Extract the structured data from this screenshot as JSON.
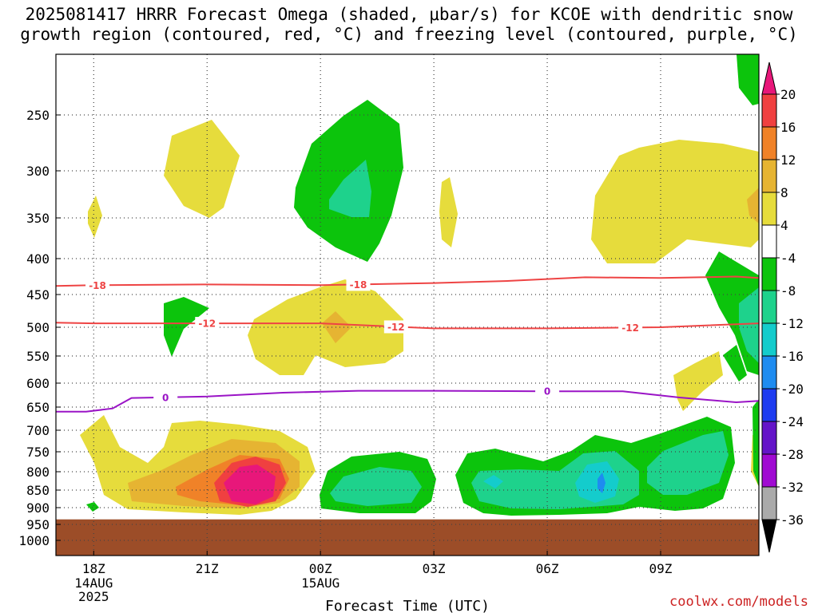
{
  "title": "2025081417 HRRR Forecast Omega (shaded, μbar/s) for KCOE with dendritic snow\ngrowth region (contoured, red, °C) and freezing level (contoured, purple, °C)",
  "credit": "coolwx.com/models",
  "chart_data": {
    "type": "time-height cross section",
    "xlabel": "Forecast Time (UTC)",
    "ylabel": "",
    "x_ticks": [
      {
        "hour": 0,
        "label": "18Z",
        "sub": [
          "14AUG",
          "2025"
        ]
      },
      {
        "hour": 3,
        "label": "21Z",
        "sub": []
      },
      {
        "hour": 6,
        "label": "00Z",
        "sub": [
          "15AUG"
        ]
      },
      {
        "hour": 9,
        "label": "03Z",
        "sub": []
      },
      {
        "hour": 12,
        "label": "06Z",
        "sub": []
      },
      {
        "hour": 15,
        "label": "09Z",
        "sub": []
      }
    ],
    "xlim_hours": [
      -1,
      17.6
    ],
    "y_axis": "pressure (hPa), inverted",
    "ylim": [
      1050,
      200
    ],
    "y_ticks": [
      250,
      300,
      350,
      400,
      450,
      500,
      550,
      600,
      650,
      700,
      750,
      800,
      850,
      900,
      950,
      1000
    ],
    "grid": "dotted",
    "ground": {
      "top_hPa": 935,
      "color": "#9c4d28"
    },
    "colorbar": {
      "levels": [
        20,
        16,
        12,
        8,
        4,
        -4,
        -8,
        -12,
        -16,
        -20,
        -24,
        -28,
        -32,
        -36
      ],
      "colors": [
        "#e8177a",
        "#f04040",
        "#f08228",
        "#e6b432",
        "#e6dc3c",
        "#ffffff",
        "#0cc40c",
        "#1ed28c",
        "#14cccc",
        "#1e8cf0",
        "#1e3cf0",
        "#6414c8",
        "#a00ad2",
        "#aaaaaa"
      ],
      "over_color": "#e8177a",
      "under_color": "#000000"
    },
    "omega_regions": [
      {
        "label": "20",
        "value": 20,
        "hour": 4.0,
        "p": 830
      },
      {
        "label": "16",
        "value": 16,
        "hour": 4.0,
        "p": 830
      },
      {
        "label": "12",
        "value": 12,
        "hour": 3.5,
        "p": 830
      },
      {
        "label": "8",
        "value": 8,
        "hour": 3.2,
        "p": 830
      },
      {
        "label": "4",
        "value": 4,
        "hour": 3.0,
        "p": 800
      },
      {
        "label": "-8",
        "value": -8,
        "hour": 6.5,
        "p": 320
      },
      {
        "label": "-12",
        "value": -12,
        "hour": 6.5,
        "p": 320
      },
      {
        "label": "-8",
        "value": -8,
        "hour": 7.5,
        "p": 830
      },
      {
        "label": "-12",
        "value": -12,
        "hour": 7.5,
        "p": 830
      },
      {
        "label": "-8",
        "value": -8,
        "hour": 12.5,
        "p": 830
      },
      {
        "label": "-12",
        "value": -12,
        "hour": 12.5,
        "p": 830
      },
      {
        "label": "-16",
        "value": -16,
        "hour": 13.0,
        "p": 830
      },
      {
        "label": "-20",
        "value": -20,
        "hour": 13.0,
        "p": 830
      }
    ],
    "contours": [
      {
        "name": "-18",
        "color": "#ee4444",
        "hours": [
          -1,
          0,
          3,
          6,
          9,
          11,
          13,
          15,
          17,
          17.6
        ],
        "p": [
          438,
          437,
          436,
          437,
          434,
          431,
          426,
          427,
          425,
          427
        ],
        "label_hours": [
          0.1,
          7.0
        ]
      },
      {
        "name": "-12",
        "color": "#ee4444",
        "hours": [
          -1,
          0,
          3,
          6,
          9,
          12,
          15,
          17.6
        ],
        "p": [
          493,
          494,
          494,
          494,
          502,
          502,
          500,
          494
        ],
        "label_hours": [
          3.0,
          8.0,
          14.2
        ]
      },
      {
        "name": "0",
        "color": "#9a14c6",
        "hours": [
          -1,
          -0.2,
          0.5,
          1,
          3,
          5,
          7,
          9,
          12,
          14,
          15.5,
          17,
          17.6
        ],
        "p": [
          660,
          660,
          653,
          631,
          628,
          620,
          616,
          616,
          617,
          617,
          630,
          640,
          637
        ],
        "label_hours": [
          1.9,
          12.0
        ]
      }
    ]
  }
}
